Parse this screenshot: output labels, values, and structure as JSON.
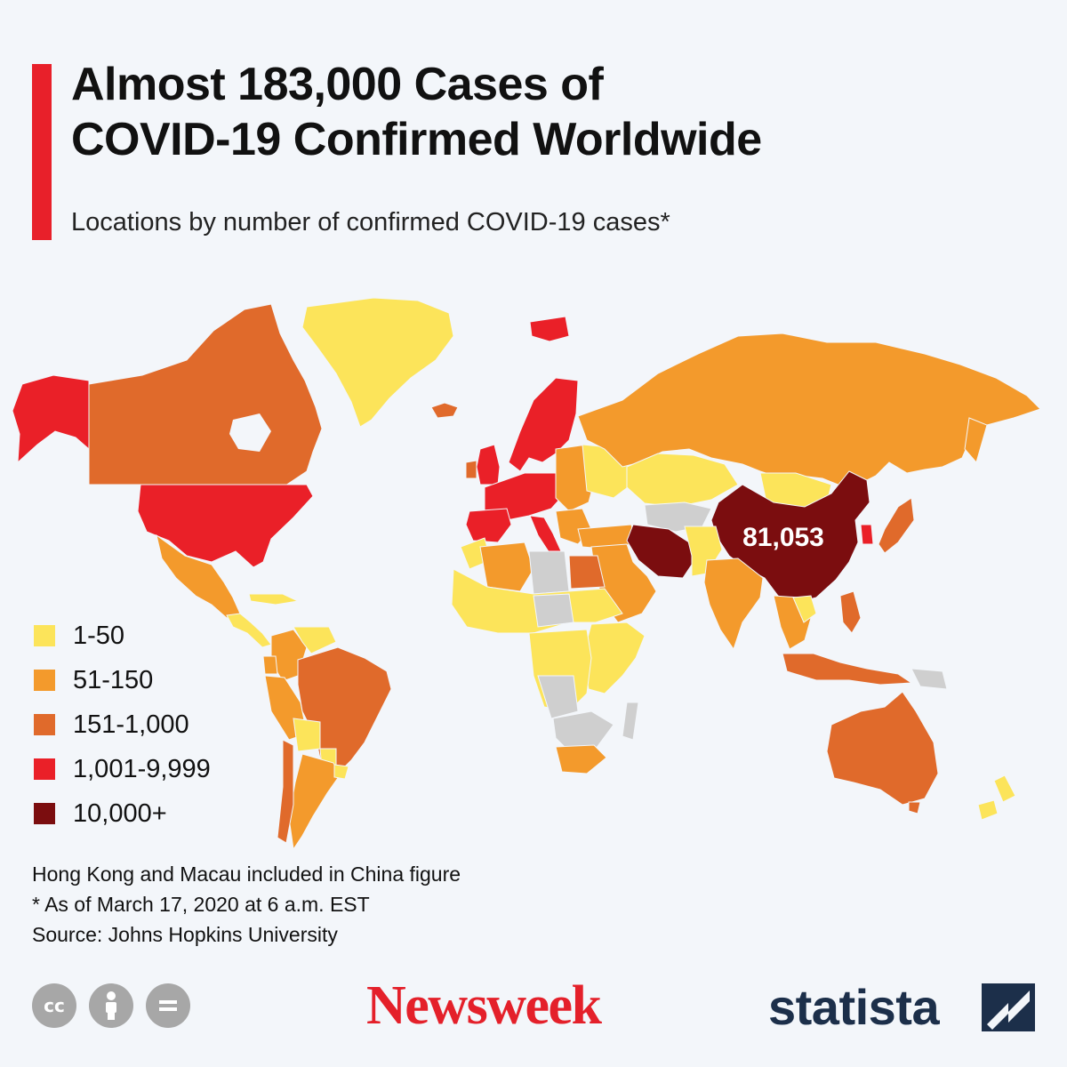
{
  "header": {
    "title_line1": "Almost 183,000 Cases of",
    "title_line2": "COVID-19 Confirmed Worldwide",
    "subtitle": "Locations by number of confirmed COVID-19 cases*"
  },
  "map": {
    "china_label": "81,053",
    "no_data_color": "#cfcfcf"
  },
  "legend": {
    "items": [
      {
        "label": "1-50",
        "color": "#fce45a"
      },
      {
        "label": "51-150",
        "color": "#f39a2c"
      },
      {
        "label": "151-1,000",
        "color": "#e06a2b"
      },
      {
        "label": "1,001-9,999",
        "color": "#ea2028"
      },
      {
        "label": "10,000+",
        "color": "#7b0d0f"
      }
    ]
  },
  "notes": {
    "line1": "Hong Kong and Macau included in China figure",
    "line2": "* As of March 17, 2020 at 6 a.m. EST",
    "line3": "Source: Johns Hopkins University"
  },
  "footer": {
    "cc_icons": [
      "cc-icon",
      "person-icon",
      "equals-icon"
    ],
    "cc_label": "cc",
    "newsweek": "Newsweek",
    "statista": "statista"
  }
}
